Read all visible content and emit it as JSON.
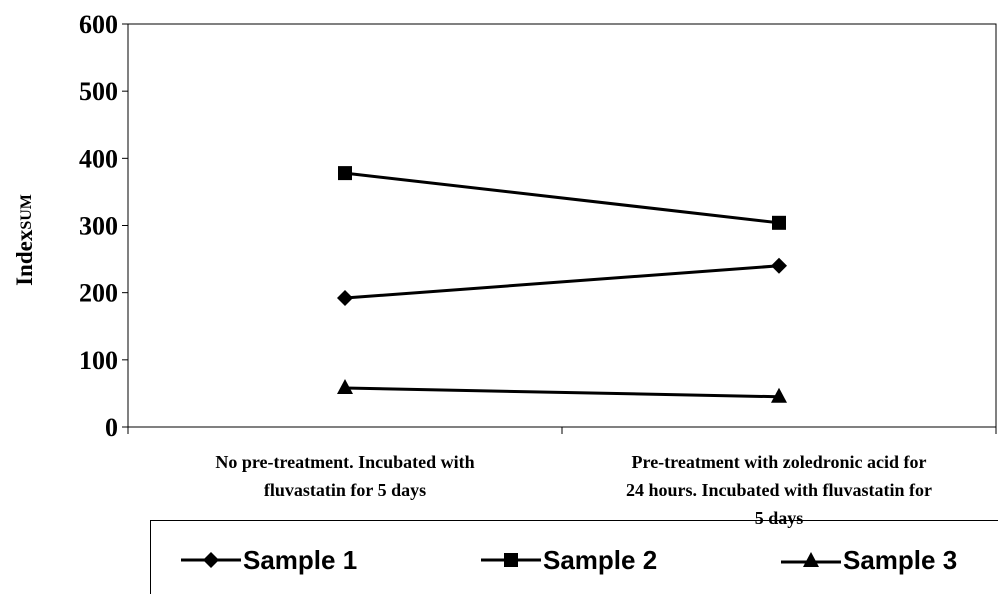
{
  "chart_data": {
    "type": "line",
    "ylabel_main": "Index",
    "ylabel_sub": "SUM",
    "ylim": [
      0,
      600
    ],
    "yticks": [
      "0",
      "100",
      "200",
      "300",
      "400",
      "500",
      "600"
    ],
    "categories": [
      "No pre-treatment. Incubated with\nfluvastatin for 5 days",
      "Pre-treatment with zoledronic acid for\n24 hours. Incubated with fluvastatin for\n5 days"
    ],
    "series": [
      {
        "name": "Sample 1",
        "marker": "diamond",
        "values": [
          192,
          240
        ]
      },
      {
        "name": "Sample 2",
        "marker": "square",
        "values": [
          378,
          304
        ]
      },
      {
        "name": "Sample 3",
        "marker": "triangle",
        "values": [
          58,
          45
        ]
      }
    ],
    "grid": false,
    "legend_position": "bottom",
    "colors": {
      "line": "#000000",
      "background": "#ffffff"
    }
  }
}
